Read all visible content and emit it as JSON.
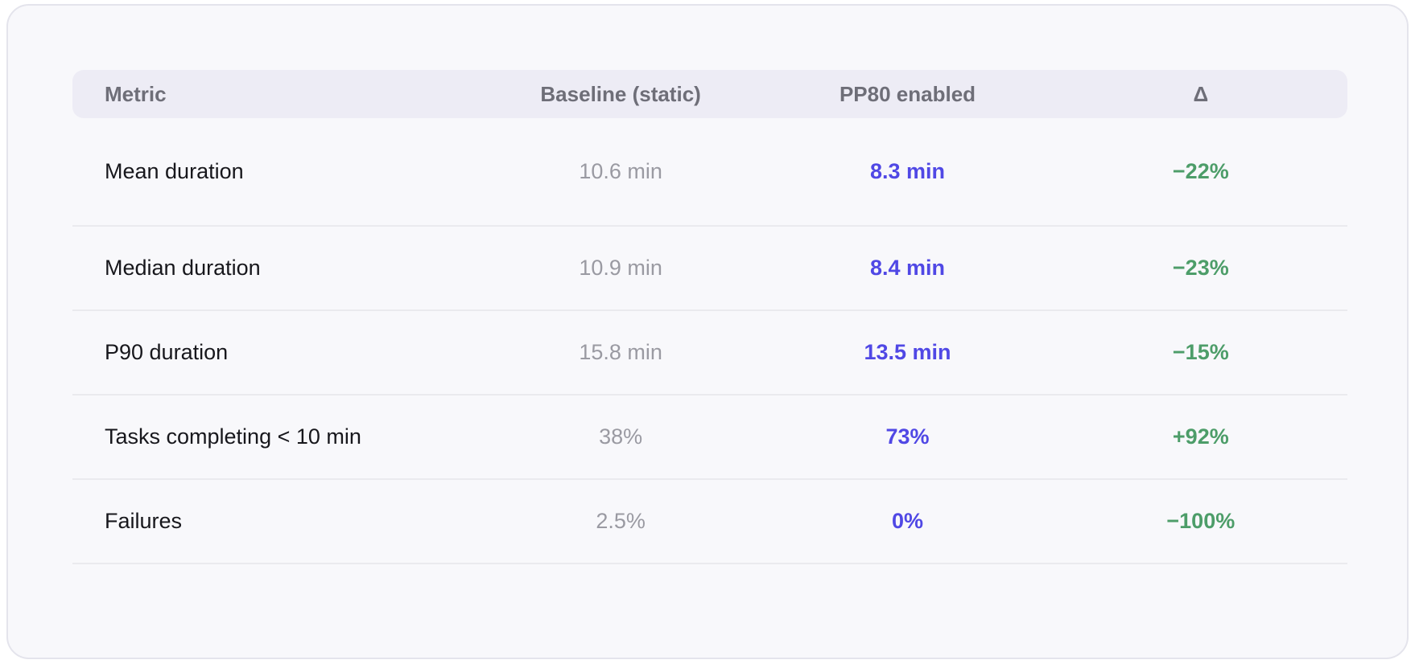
{
  "colors": {
    "card_bg": "#F8F8FB",
    "card_border": "#E4E4EC",
    "header_bg": "#EDECF5",
    "header_fg": "#6E6E78",
    "metric_fg": "#17171C",
    "baseline_fg": "#9A9AA2",
    "pp80_fg": "#5048E5",
    "delta_fg": "#4D9D69",
    "row_border": "#EAEAEE"
  },
  "chart_data": {
    "type": "table",
    "title": "",
    "columns": [
      "Metric",
      "Baseline (static)",
      "PP80 enabled",
      "Δ"
    ],
    "rows": [
      {
        "metric": "Mean duration",
        "baseline": "10.6 min",
        "pp80": "8.3 min",
        "delta": "−22%"
      },
      {
        "metric": "Median duration",
        "baseline": "10.9 min",
        "pp80": "8.4 min",
        "delta": "−23%"
      },
      {
        "metric": "P90 duration",
        "baseline": "15.8 min",
        "pp80": "13.5 min",
        "delta": "−15%"
      },
      {
        "metric": "Tasks completing < 10 min",
        "baseline": "38%",
        "pp80": "73%",
        "delta": "+92%"
      },
      {
        "metric": "Failures",
        "baseline": "2.5%",
        "pp80": "0%",
        "delta": "−100%"
      }
    ]
  }
}
